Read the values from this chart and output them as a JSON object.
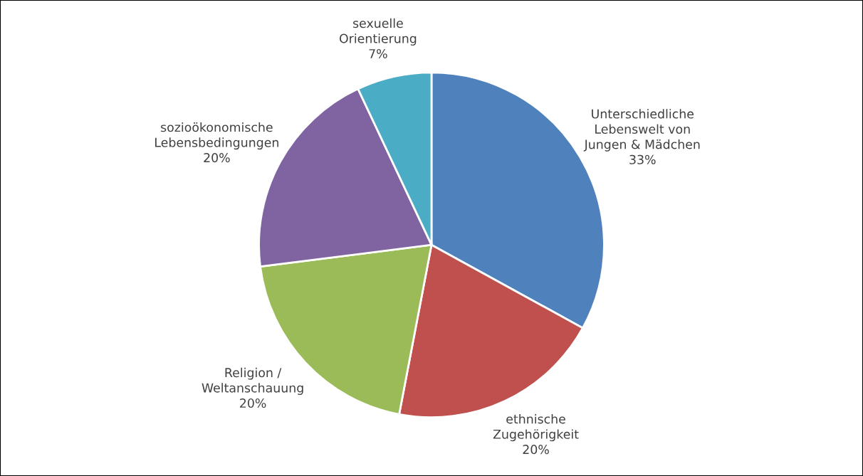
{
  "chart_data": {
    "type": "pie",
    "categories": [
      "Unterschiedliche\nLebenswelt von\nJungen & Mädchen",
      "ethnische\nZugehörigkeit",
      "Religion /\nWeltanschauung",
      "sozioökonomische\nLebensbedingungen",
      "sexuelle\nOrientierung"
    ],
    "values": [
      33,
      20,
      20,
      20,
      7
    ],
    "value_labels": [
      "33%",
      "20%",
      "20%",
      "20%",
      "7%"
    ],
    "colors": [
      "#4f81bd",
      "#c0504d",
      "#9bbb59",
      "#8064a2",
      "#4bacc6"
    ],
    "legend": false
  }
}
